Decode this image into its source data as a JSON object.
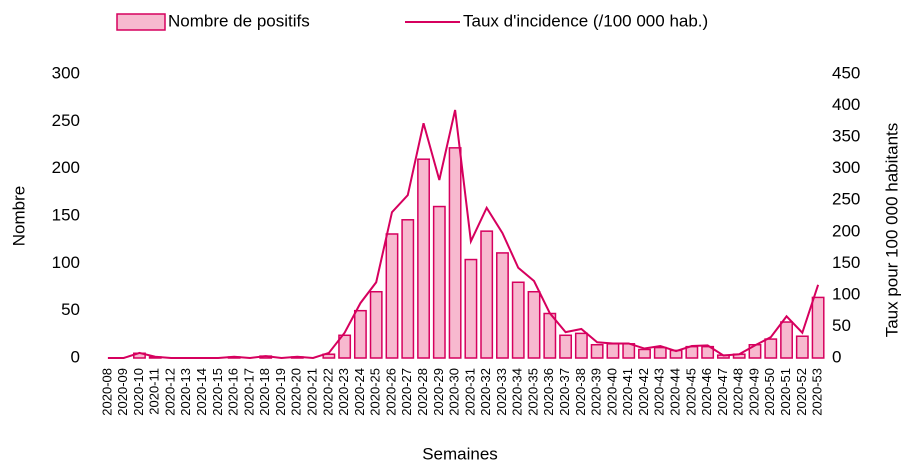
{
  "chart_data": {
    "type": "bar-line",
    "x_label": "Semaines",
    "y_label": "Nombre",
    "y2_label": "Taux pour 100 000 habitants",
    "categories": [
      "2020-08",
      "2020-09",
      "2020-10",
      "2020-11",
      "2020-12",
      "2020-13",
      "2020-14",
      "2020-15",
      "2020-16",
      "2020-17",
      "2020-18",
      "2020-19",
      "2020-20",
      "2020-21",
      "2020-22",
      "2020-23",
      "2020-24",
      "2020-25",
      "2020-26",
      "2020-27",
      "2020-28",
      "2020-29",
      "2020-30",
      "2020-31",
      "2020-32",
      "2020-33",
      "2020-34",
      "2020-35",
      "2020-36",
      "2020-37",
      "2020-38",
      "2020-39",
      "2020-40",
      "2020-41",
      "2020-42",
      "2020-43",
      "2020-44",
      "2020-45",
      "2020-46",
      "2020-47",
      "2020-48",
      "2020-49",
      "2020-50",
      "2020-51",
      "2020-52",
      "2020-53"
    ],
    "series": [
      {
        "name": "Nombre de positifs",
        "type": "bar",
        "color": "#f7b9cf",
        "edge_color": "#d6005e",
        "values": [
          0,
          0,
          5,
          1,
          0,
          0,
          0,
          0,
          1,
          0,
          2,
          0,
          1,
          0,
          4,
          24,
          50,
          70,
          131,
          146,
          210,
          160,
          222,
          104,
          134,
          111,
          80,
          70,
          47,
          24,
          26,
          14,
          15,
          15,
          9,
          11,
          8,
          12,
          12,
          3,
          4,
          14,
          20,
          38,
          23,
          64
        ]
      },
      {
        "name": "Taux d'incidence (/100 000 hab.)",
        "type": "line",
        "axis": "y2",
        "color": "#d6005e",
        "values": [
          0,
          0,
          8,
          2,
          0,
          0,
          0,
          0,
          2,
          0,
          3,
          0,
          2,
          0,
          8,
          40,
          87,
          120,
          231,
          258,
          372,
          282,
          393,
          185,
          238,
          198,
          143,
          122,
          71,
          41,
          46,
          25,
          23,
          23,
          15,
          19,
          11,
          19,
          20,
          4,
          6,
          20,
          33,
          66,
          40,
          116
        ]
      }
    ],
    "ylim": [
      0,
      300
    ],
    "yticks": [
      0,
      50,
      100,
      150,
      200,
      250,
      300
    ],
    "y2lim": [
      0,
      450
    ],
    "y2ticks": [
      0,
      50,
      100,
      150,
      200,
      250,
      300,
      350,
      400,
      450
    ],
    "legend": "top",
    "grid": false
  }
}
